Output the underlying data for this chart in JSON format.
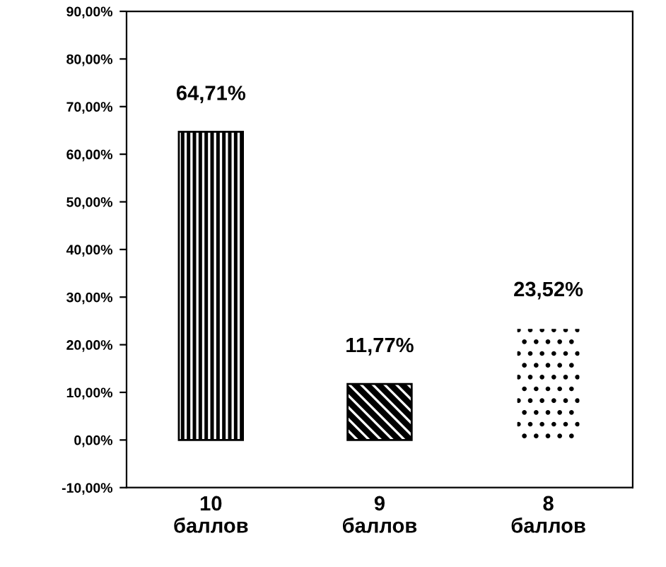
{
  "chart_data": {
    "type": "bar",
    "categories": [
      "10\nбаллов",
      "9\nбаллов",
      "8\nбаллов"
    ],
    "values": [
      64.71,
      11.77,
      23.52
    ],
    "value_labels": [
      "64,71%",
      "11,77%",
      "23,52%"
    ],
    "colors": [
      "#000000",
      "#000000",
      "#ffffff"
    ],
    "ylim": [
      -10,
      90
    ],
    "yticks": [
      {
        "value": -10,
        "label": "-10,00%"
      },
      {
        "value": 0,
        "label": "0,00%"
      },
      {
        "value": 10,
        "label": "10,00%"
      },
      {
        "value": 20,
        "label": "20,00%"
      },
      {
        "value": 30,
        "label": "30,00%"
      },
      {
        "value": 40,
        "label": "40,00%"
      },
      {
        "value": 50,
        "label": "50,00%"
      },
      {
        "value": 60,
        "label": "60,00%"
      },
      {
        "value": 70,
        "label": "70,00%"
      },
      {
        "value": 80,
        "label": "80,00%"
      },
      {
        "value": 90,
        "label": "90,00%"
      }
    ],
    "grid": false
  }
}
